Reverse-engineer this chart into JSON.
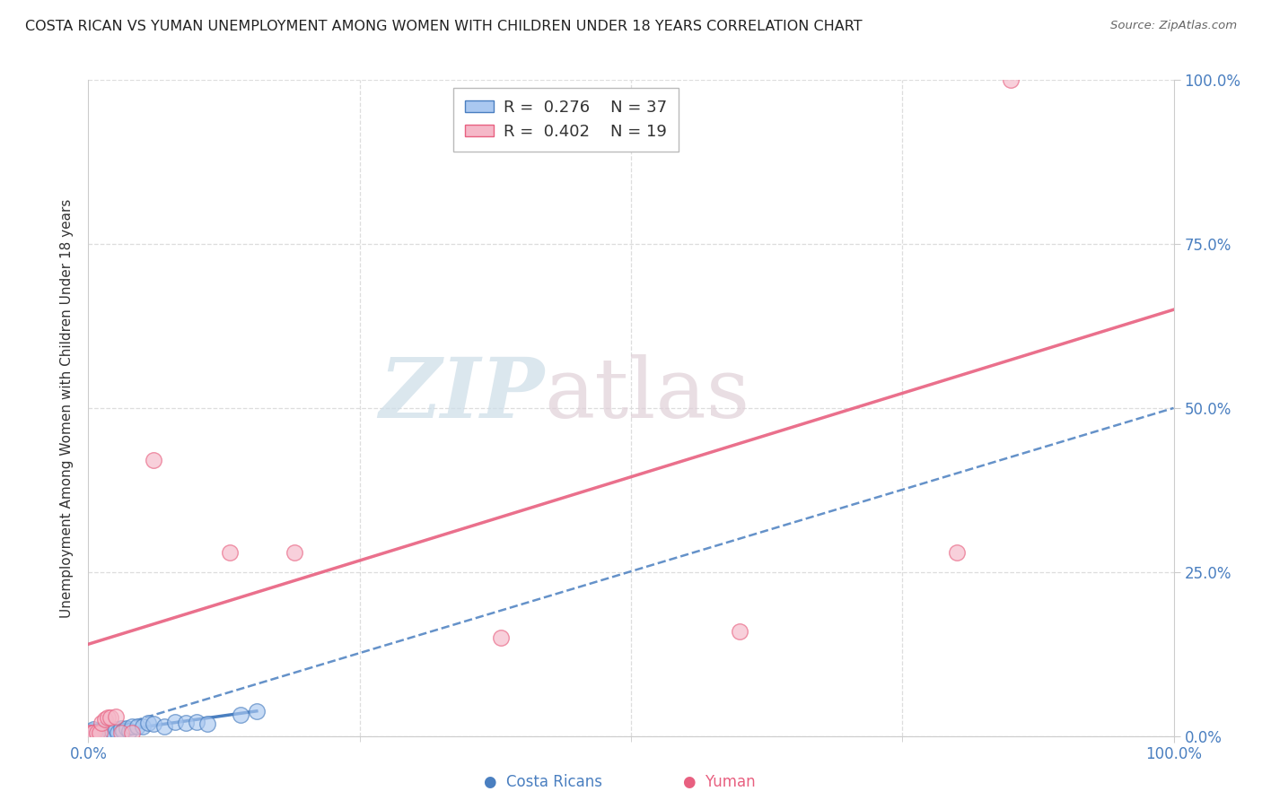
{
  "title": "COSTA RICAN VS YUMAN UNEMPLOYMENT AMONG WOMEN WITH CHILDREN UNDER 18 YEARS CORRELATION CHART",
  "source": "Source: ZipAtlas.com",
  "ylabel": "Unemployment Among Women with Children Under 18 years",
  "ytick_labels": [
    "0.0%",
    "25.0%",
    "50.0%",
    "75.0%",
    "100.0%"
  ],
  "ytick_values": [
    0.0,
    0.25,
    0.5,
    0.75,
    1.0
  ],
  "xtick_values": [
    0.0,
    1.0
  ],
  "xtick_labels": [
    "0.0%",
    "100.0%"
  ],
  "minor_xtick_values": [
    0.25,
    0.5,
    0.75
  ],
  "watermark_zip": "ZIP",
  "watermark_atlas": "atlas",
  "legend_blue_r": "0.276",
  "legend_blue_n": "37",
  "legend_pink_r": "0.402",
  "legend_pink_n": "19",
  "legend_label_blue": "Costa Ricans",
  "legend_label_pink": "Yuman",
  "blue_scatter_x": [
    0.001,
    0.002,
    0.003,
    0.004,
    0.005,
    0.006,
    0.007,
    0.008,
    0.009,
    0.01,
    0.011,
    0.012,
    0.013,
    0.014,
    0.015,
    0.016,
    0.018,
    0.02,
    0.022,
    0.025,
    0.027,
    0.03,
    0.032,
    0.035,
    0.038,
    0.04,
    0.045,
    0.05,
    0.055,
    0.06,
    0.07,
    0.08,
    0.09,
    0.1,
    0.11,
    0.14,
    0.155
  ],
  "blue_scatter_y": [
    0.005,
    0.005,
    0.008,
    0.005,
    0.01,
    0.005,
    0.007,
    0.005,
    0.008,
    0.005,
    0.005,
    0.008,
    0.005,
    0.01,
    0.005,
    0.008,
    0.005,
    0.005,
    0.008,
    0.01,
    0.005,
    0.012,
    0.008,
    0.012,
    0.008,
    0.015,
    0.015,
    0.015,
    0.02,
    0.018,
    0.015,
    0.022,
    0.02,
    0.022,
    0.018,
    0.032,
    0.038
  ],
  "pink_scatter_x": [
    0.001,
    0.003,
    0.005,
    0.008,
    0.01,
    0.012,
    0.015,
    0.018,
    0.02,
    0.025,
    0.03,
    0.04,
    0.06,
    0.13,
    0.19,
    0.38,
    0.6,
    0.8,
    0.85
  ],
  "pink_scatter_y": [
    0.005,
    0.005,
    0.005,
    0.005,
    0.005,
    0.02,
    0.025,
    0.028,
    0.028,
    0.03,
    0.005,
    0.005,
    0.42,
    0.28,
    0.28,
    0.15,
    0.16,
    0.28,
    1.0
  ],
  "blue_line_x0": 0.0,
  "blue_line_x1": 1.0,
  "blue_line_y0": 0.002,
  "blue_line_y1": 0.5,
  "pink_line_x0": 0.0,
  "pink_line_x1": 1.0,
  "pink_line_y0": 0.14,
  "pink_line_y1": 0.65,
  "title_color": "#222222",
  "source_color": "#666666",
  "blue_color": "#aac8f0",
  "pink_color": "#f5b8c8",
  "blue_line_color": "#4a7fc0",
  "pink_line_color": "#e86080",
  "blue_solid_line_x0": 0.0,
  "blue_solid_line_x1": 0.155,
  "blue_solid_line_y0": 0.002,
  "blue_solid_line_y1": 0.038,
  "axis_color": "#cccccc",
  "grid_color": "#dddddd",
  "tick_label_color": "#4a7fc0",
  "background_color": "#ffffff"
}
